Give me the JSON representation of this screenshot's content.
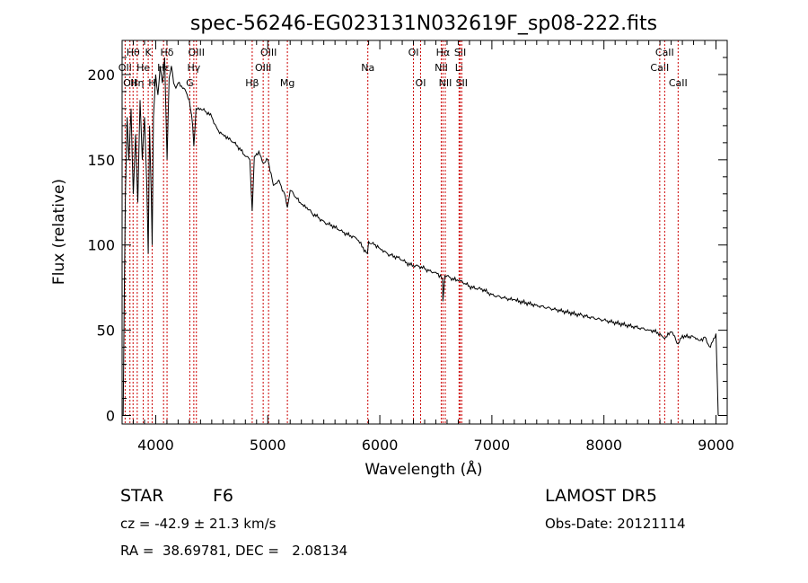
{
  "chart_data": {
    "type": "line",
    "title": "spec-56246-EG023131N032619F_sp08-222.fits",
    "xlabel": "Wavelength (Å)",
    "ylabel": "Flux (relative)",
    "xlim": [
      3700,
      9100
    ],
    "ylim": [
      -5,
      220
    ],
    "xticks": [
      4000,
      5000,
      6000,
      7000,
      8000,
      9000
    ],
    "yticks": [
      0,
      50,
      100,
      150,
      200
    ],
    "grid": false,
    "line_color": "#000000",
    "marker_color": "#cc0000",
    "series": [
      {
        "x": [
          3710,
          3720,
          3730,
          3745,
          3760,
          3780,
          3800,
          3820,
          3840,
          3860,
          3880,
          3900,
          3920,
          3933,
          3945,
          3960,
          3968,
          3980,
          4000,
          4020,
          4040,
          4060,
          4080,
          4101,
          4120,
          4140,
          4160,
          4180,
          4200,
          4250,
          4300,
          4330,
          4340,
          4360,
          4400,
          4450,
          4500,
          4550,
          4600,
          4650,
          4700,
          4750,
          4800,
          4840,
          4861,
          4880,
          4920,
          4960,
          5000,
          5050,
          5100,
          5150,
          5175,
          5200,
          5250,
          5300,
          5350,
          5400,
          5450,
          5500,
          5600,
          5700,
          5800,
          5890,
          5900,
          6000,
          6100,
          6200,
          6300,
          6400,
          6500,
          6560,
          6563,
          6580,
          6600,
          6700,
          6800,
          6900,
          7000,
          7200,
          7400,
          7600,
          7800,
          8000,
          8200,
          8400,
          8500,
          8542,
          8600,
          8662,
          8700,
          8800,
          8850,
          8900,
          8950,
          9000,
          9020
        ],
        "y": [
          0,
          75,
          130,
          175,
          150,
          180,
          130,
          165,
          125,
          185,
          150,
          175,
          135,
          95,
          170,
          130,
          100,
          175,
          200,
          188,
          205,
          195,
          210,
          150,
          198,
          205,
          195,
          192,
          195,
          192,
          185,
          170,
          158,
          180,
          180,
          178,
          175,
          168,
          165,
          162,
          160,
          157,
          152,
          150,
          120,
          152,
          155,
          148,
          150,
          135,
          138,
          130,
          122,
          132,
          128,
          124,
          122,
          118,
          116,
          114,
          110,
          107,
          103,
          95,
          102,
          98,
          94,
          91,
          88,
          86,
          84,
          80,
          67,
          82,
          82,
          79,
          76,
          74,
          71,
          68,
          65,
          62,
          59,
          56,
          53,
          50,
          48,
          45,
          49,
          42,
          47,
          46,
          44,
          46,
          40,
          48,
          0
        ]
      }
    ],
    "lines": [
      {
        "wl": 3727,
        "label": "OII",
        "row": 1
      },
      {
        "wl": 3770,
        "label": "OII",
        "row": 2
      },
      {
        "wl": 3798,
        "label": "Hθ",
        "row": 0
      },
      {
        "wl": 3835,
        "label": "Hη",
        "row": 2
      },
      {
        "wl": 3889,
        "label": "He",
        "row": 1
      },
      {
        "wl": 3933,
        "label": "K",
        "row": 0
      },
      {
        "wl": 3968,
        "label": "H",
        "row": 2
      },
      {
        "wl": 4070,
        "label": "Hε",
        "row": 1
      },
      {
        "wl": 4101,
        "label": "Hδ",
        "row": 0
      },
      {
        "wl": 4304,
        "label": "G",
        "row": 2
      },
      {
        "wl": 4340,
        "label": "Hγ",
        "row": 1
      },
      {
        "wl": 4363,
        "label": "OIII",
        "row": 0
      },
      {
        "wl": 4861,
        "label": "Hβ",
        "row": 2
      },
      {
        "wl": 4959,
        "label": "OIII",
        "row": 1
      },
      {
        "wl": 5007,
        "label": "OIII",
        "row": 0
      },
      {
        "wl": 5175,
        "label": "Mg",
        "row": 2
      },
      {
        "wl": 5893,
        "label": "Na",
        "row": 1
      },
      {
        "wl": 6300,
        "label": "OI",
        "row": 0
      },
      {
        "wl": 6364,
        "label": "OI",
        "row": 2
      },
      {
        "wl": 6548,
        "label": "NII",
        "row": 1
      },
      {
        "wl": 6563,
        "label": "Hα",
        "row": 0
      },
      {
        "wl": 6584,
        "label": "NII",
        "row": 2
      },
      {
        "wl": 6707,
        "label": "Li",
        "row": 1
      },
      {
        "wl": 6717,
        "label": "SII",
        "row": 0
      },
      {
        "wl": 6731,
        "label": "SII",
        "row": 2
      },
      {
        "wl": 8498,
        "label": "CaII",
        "row": 1
      },
      {
        "wl": 8542,
        "label": "CaII",
        "row": 0
      },
      {
        "wl": 8662,
        "label": "CaII",
        "row": 2
      }
    ]
  },
  "info": {
    "class_label": "STAR",
    "subclass_label": "F6",
    "survey_label": "LAMOST DR5",
    "cz_text": "cz = -42.9 ± 21.3 km/s",
    "obs_date_text": "Obs-Date: 20121114",
    "ra_dec_text": "RA =  38.69781, DEC =   2.08134"
  }
}
